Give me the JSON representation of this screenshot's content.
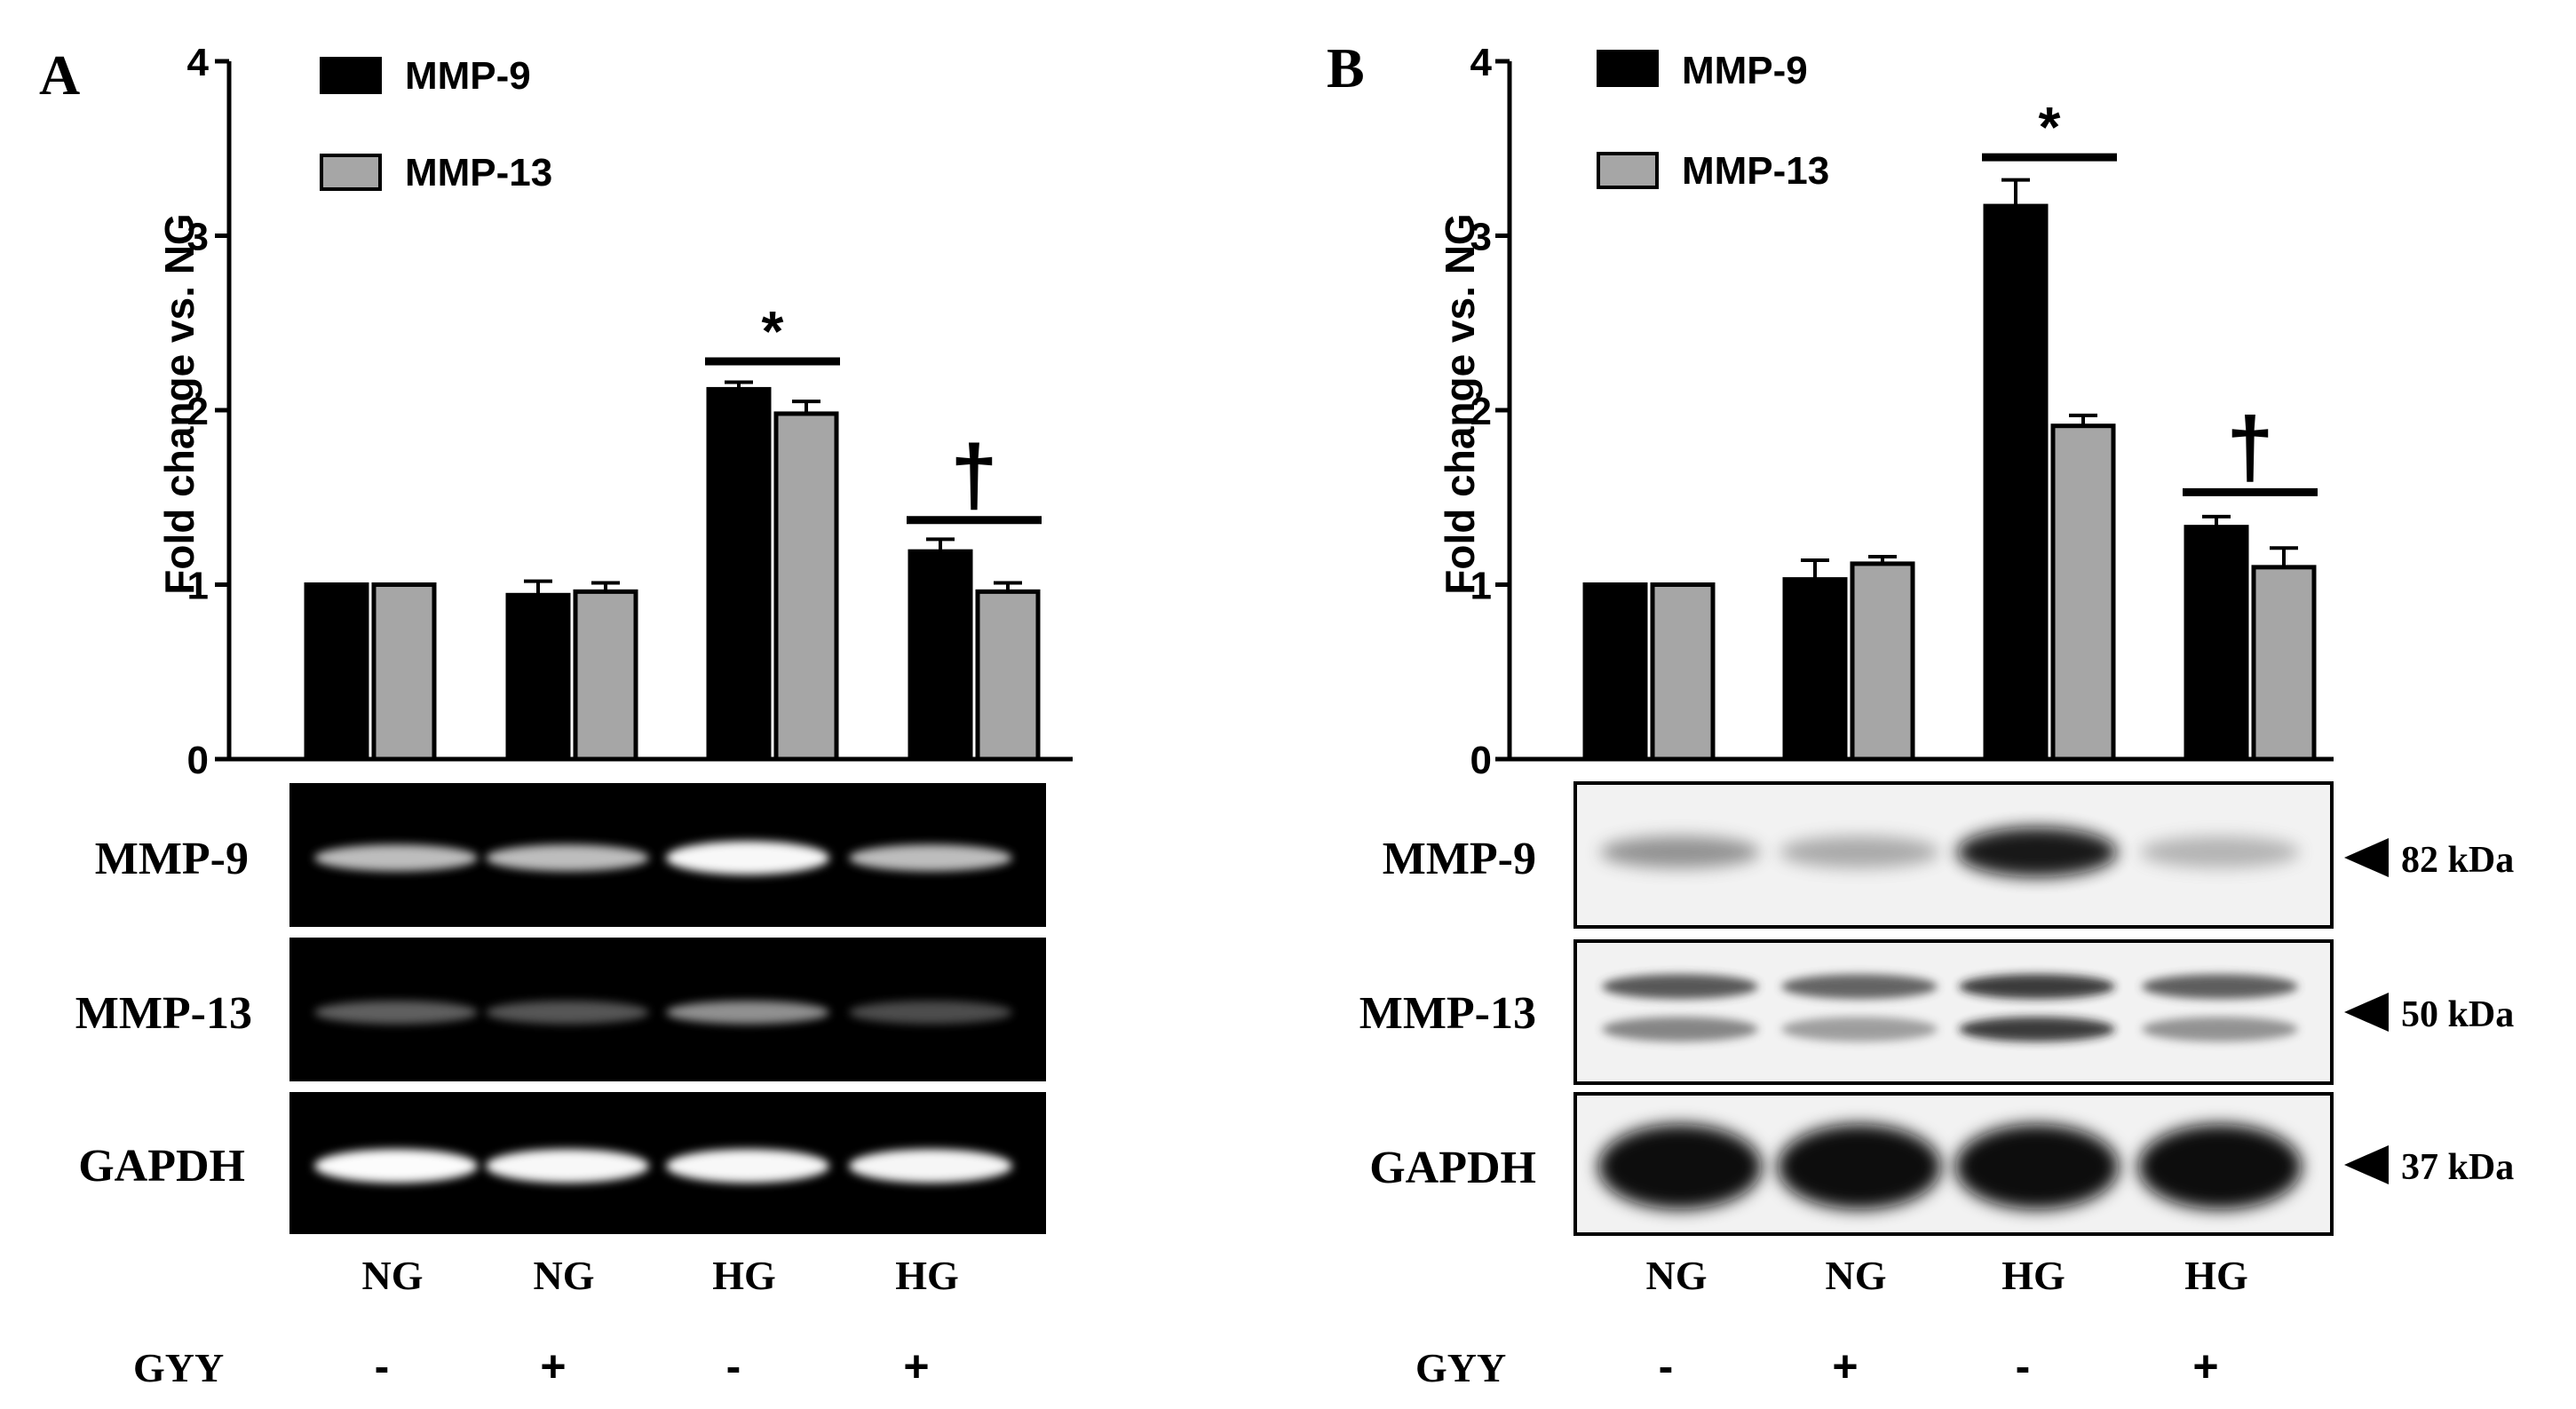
{
  "chart_data": [
    {
      "type": "bar",
      "panel_label": "A",
      "ylabel": "Fold change vs. NG",
      "ylim": [
        0,
        4
      ],
      "yticks": [
        0,
        1,
        2,
        3,
        4
      ],
      "legend_position": "top-left",
      "categories": [
        "NG",
        "NG",
        "HG",
        "HG"
      ],
      "series": [
        {
          "name": "MMP-9",
          "color": "#000000",
          "values": [
            1.0,
            0.94,
            2.12,
            1.19
          ],
          "errors": [
            0.0,
            0.08,
            0.04,
            0.07
          ]
        },
        {
          "name": "MMP-13",
          "color": "#a6a6a6",
          "values": [
            1.0,
            0.96,
            1.98,
            0.96
          ],
          "errors": [
            0.0,
            0.05,
            0.07,
            0.05
          ]
        }
      ],
      "significance": [
        {
          "group": 2,
          "symbol": "*",
          "level": 2.28
        },
        {
          "group": 3,
          "symbol": "†",
          "level": 1.37
        }
      ],
      "blot_rows": [
        {
          "label": "MMP-9",
          "marker": ""
        },
        {
          "label": "MMP-13",
          "marker": ""
        },
        {
          "label": "GAPDH",
          "marker": ""
        }
      ],
      "band_intensity": {
        "MMP-9": [
          0.72,
          0.72,
          0.95,
          0.72
        ],
        "MMP-13": [
          0.4,
          0.36,
          0.58,
          0.32
        ],
        "GAPDH": [
          0.98,
          0.95,
          0.95,
          0.93
        ]
      },
      "treatment_label": "GYY",
      "treatment": [
        "-",
        "+",
        "-",
        "+"
      ]
    },
    {
      "type": "bar",
      "panel_label": "B",
      "ylabel": "Fold change vs. NG",
      "ylim": [
        0,
        4
      ],
      "yticks": [
        0,
        1,
        2,
        3,
        4
      ],
      "legend_position": "top-left",
      "categories": [
        "NG",
        "NG",
        "HG",
        "HG"
      ],
      "series": [
        {
          "name": "MMP-9",
          "color": "#000000",
          "values": [
            1.0,
            1.03,
            3.17,
            1.33
          ],
          "errors": [
            0.0,
            0.11,
            0.15,
            0.06
          ]
        },
        {
          "name": "MMP-13",
          "color": "#a6a6a6",
          "values": [
            1.0,
            1.12,
            1.91,
            1.1
          ],
          "errors": [
            0.0,
            0.04,
            0.06,
            0.11
          ]
        }
      ],
      "significance": [
        {
          "group": 2,
          "symbol": "*",
          "level": 3.45
        },
        {
          "group": 3,
          "symbol": "†",
          "level": 1.53
        }
      ],
      "blot_rows": [
        {
          "label": "MMP-9",
          "marker": "82 kDa"
        },
        {
          "label": "MMP-13",
          "marker": "50 kDa"
        },
        {
          "label": "GAPDH",
          "marker": "37 kDa"
        }
      ],
      "band_intensity": {
        "MMP-9": [
          0.55,
          0.45,
          0.95,
          0.4
        ],
        "MMP-13": [
          0.6,
          0.5,
          0.85,
          0.55
        ],
        "GAPDH": [
          0.95,
          0.95,
          0.95,
          0.95
        ]
      },
      "treatment_label": "GYY",
      "treatment": [
        "-",
        "+",
        "-",
        "+"
      ]
    }
  ]
}
